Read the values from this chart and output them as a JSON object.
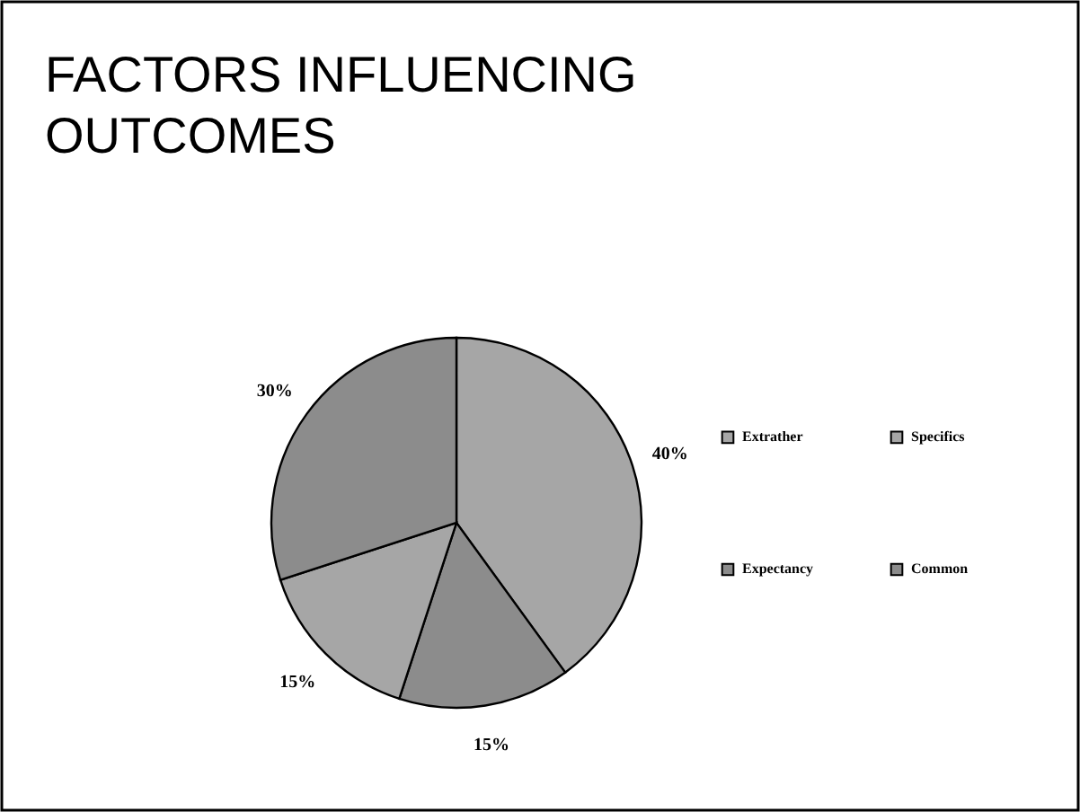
{
  "chart_data": {
    "type": "pie",
    "title": "FACTORS INFLUENCING\nOUTCOMES",
    "categories": [
      "Extrather",
      "Expectancy",
      "Specifics",
      "Common"
    ],
    "values": [
      40,
      15,
      15,
      30
    ],
    "colors": [
      "#a6a6a6",
      "#8c8c8c",
      "#a6a6a6",
      "#8c8c8c"
    ],
    "value_labels": [
      "40%",
      "15%",
      "15%",
      "30%"
    ],
    "legend": "right"
  }
}
